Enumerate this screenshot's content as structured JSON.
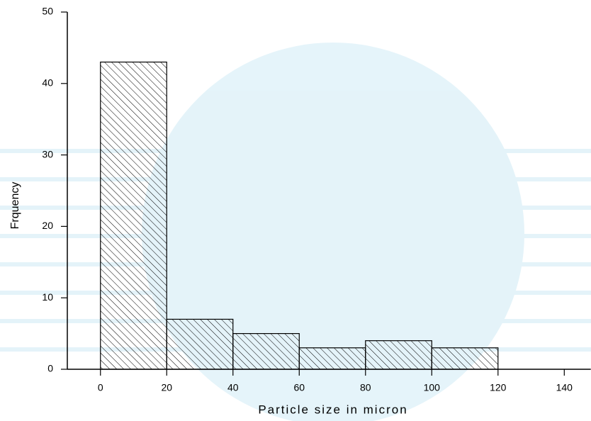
{
  "chart_data": {
    "type": "histogram",
    "xlabel": "Particle size in micron",
    "ylabel": "Frquency",
    "bins": [
      0,
      20,
      40,
      60,
      80,
      100,
      120
    ],
    "values": [
      43,
      7,
      5,
      3,
      4,
      3
    ],
    "hatch": "\\\\",
    "color": "#000000",
    "xlim": [
      -10,
      148
    ],
    "ylim": [
      0,
      50
    ],
    "xticks": [
      0,
      20,
      40,
      60,
      80,
      100,
      120,
      140
    ],
    "yticks": [
      0,
      10,
      20,
      30,
      40,
      50
    ],
    "grid": false
  }
}
